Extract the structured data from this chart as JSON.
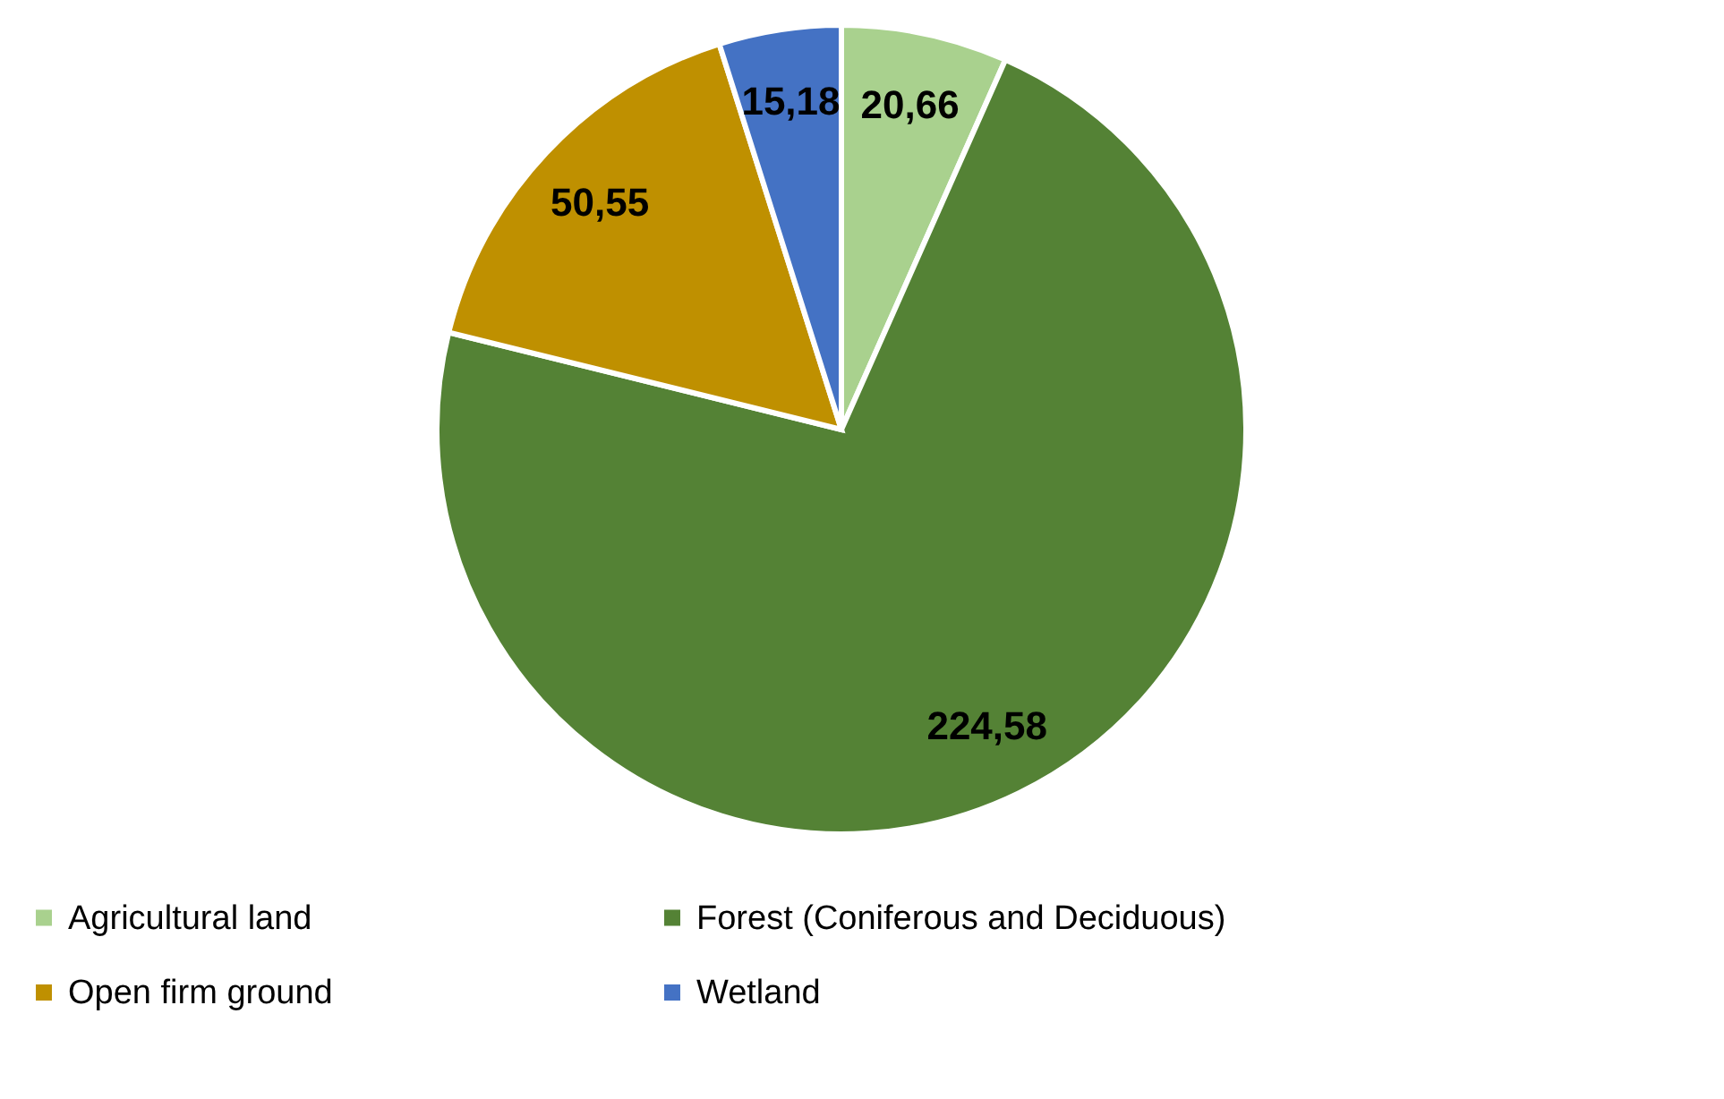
{
  "chart_data": {
    "type": "pie",
    "categories": [
      "Agricultural land",
      "Forest (Coniferous and Deciduous)",
      "Open firm ground",
      "Wetland"
    ],
    "values": [
      20.66,
      224.58,
      50.55,
      15.18
    ],
    "value_labels": [
      "20,66",
      "224,58",
      "50,55",
      "15,18"
    ],
    "colors": [
      "#a9d18e",
      "#548235",
      "#bf9000",
      "#4472c4"
    ],
    "legend": "bottom"
  }
}
